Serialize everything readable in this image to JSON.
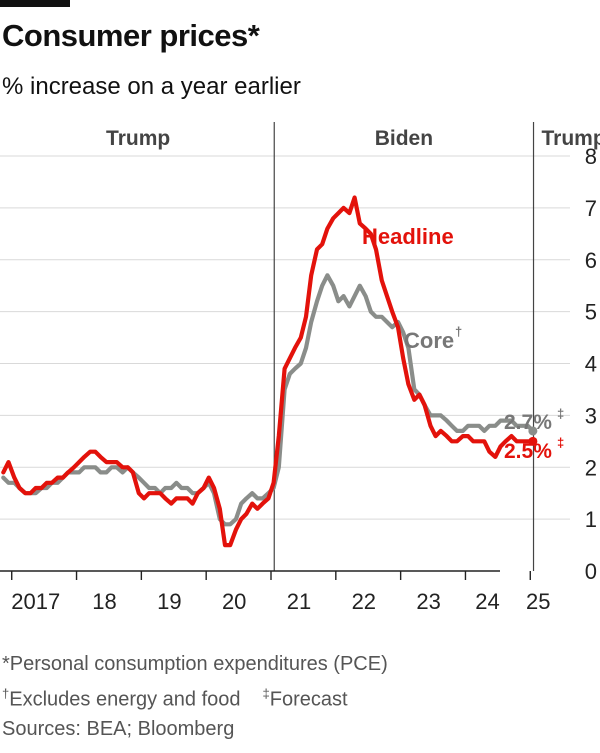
{
  "title": "Consumer prices*",
  "subtitle": "% increase on a year earlier",
  "footnotes": {
    "pce": "*Personal consumption expenditures (PCE)",
    "core_mark": "†",
    "core_note": "Excludes energy and food",
    "forecast_mark": "‡",
    "forecast_note": "Forecast",
    "sources": "Sources: BEA; Bloomberg"
  },
  "colors": {
    "headline": "#e3120b",
    "core": "#8a8d8a",
    "grid": "#d9d9d9",
    "axis": "#222222"
  },
  "chart_data": {
    "type": "line",
    "title": "Consumer prices*",
    "ylabel": "% increase on a year earlier",
    "ylim": [
      0,
      8
    ],
    "xlim": [
      2016.85,
      2025.15
    ],
    "y_ticks": [
      "0",
      "1",
      "2",
      "3",
      "4",
      "5",
      "6",
      "7",
      "8"
    ],
    "x_ticks": [
      {
        "value": 2017,
        "label": "2017"
      },
      {
        "value": 2018,
        "label": "18"
      },
      {
        "value": 2019,
        "label": "19"
      },
      {
        "value": 2020,
        "label": "20"
      },
      {
        "value": 2021,
        "label": "21"
      },
      {
        "value": 2022,
        "label": "22"
      },
      {
        "value": 2023,
        "label": "23"
      },
      {
        "value": 2024,
        "label": "24"
      },
      {
        "value": 2025,
        "label": "25"
      }
    ],
    "periods": [
      {
        "label": "Trump",
        "start": 2016.85,
        "end": 2021.05
      },
      {
        "label": "Biden",
        "start": 2021.05,
        "end": 2025.05
      },
      {
        "label": "Trump",
        "start": 2025.05,
        "end": 2025.15
      }
    ],
    "series": [
      {
        "name": "Headline",
        "label": "Headline",
        "end_label": "2.5%",
        "end_mark": "‡",
        "x": [
          2016.87,
          2016.95,
          2017.04,
          2017.12,
          2017.21,
          2017.29,
          2017.37,
          2017.46,
          2017.54,
          2017.62,
          2017.71,
          2017.79,
          2017.87,
          2017.96,
          2018.04,
          2018.12,
          2018.21,
          2018.29,
          2018.37,
          2018.46,
          2018.54,
          2018.62,
          2018.71,
          2018.79,
          2018.87,
          2018.96,
          2019.04,
          2019.12,
          2019.21,
          2019.29,
          2019.37,
          2019.46,
          2019.54,
          2019.62,
          2019.71,
          2019.79,
          2019.87,
          2019.96,
          2020.04,
          2020.12,
          2020.21,
          2020.29,
          2020.37,
          2020.46,
          2020.54,
          2020.62,
          2020.71,
          2020.79,
          2020.87,
          2020.96,
          2021.04,
          2021.12,
          2021.21,
          2021.29,
          2021.37,
          2021.46,
          2021.54,
          2021.62,
          2021.71,
          2021.79,
          2021.87,
          2021.96,
          2022.04,
          2022.12,
          2022.21,
          2022.29,
          2022.37,
          2022.46,
          2022.54,
          2022.62,
          2022.71,
          2022.79,
          2022.87,
          2022.96,
          2023.04,
          2023.12,
          2023.21,
          2023.29,
          2023.37,
          2023.46,
          2023.54,
          2023.62,
          2023.71,
          2023.79,
          2023.87,
          2023.96,
          2024.04,
          2024.12,
          2024.21,
          2024.29,
          2024.37,
          2024.46,
          2024.54,
          2024.62,
          2024.71,
          2024.79,
          2024.87,
          2024.96,
          2025.04
        ],
        "values": [
          1.9,
          2.1,
          1.8,
          1.6,
          1.5,
          1.5,
          1.6,
          1.6,
          1.7,
          1.7,
          1.8,
          1.8,
          1.9,
          2.0,
          2.1,
          2.2,
          2.3,
          2.3,
          2.2,
          2.1,
          2.1,
          2.1,
          2.0,
          2.0,
          1.9,
          1.5,
          1.4,
          1.5,
          1.5,
          1.5,
          1.4,
          1.3,
          1.4,
          1.4,
          1.4,
          1.3,
          1.5,
          1.6,
          1.8,
          1.6,
          1.2,
          0.5,
          0.5,
          0.8,
          1.0,
          1.1,
          1.3,
          1.2,
          1.3,
          1.4,
          1.7,
          2.6,
          3.9,
          4.1,
          4.3,
          4.5,
          4.9,
          5.7,
          6.2,
          6.3,
          6.6,
          6.8,
          6.9,
          7.0,
          6.9,
          7.2,
          6.7,
          6.6,
          6.5,
          6.2,
          5.6,
          5.3,
          5.0,
          4.7,
          4.1,
          3.6,
          3.3,
          3.4,
          3.2,
          2.8,
          2.6,
          2.7,
          2.6,
          2.5,
          2.5,
          2.6,
          2.6,
          2.5,
          2.5,
          2.5,
          2.3,
          2.2,
          2.4,
          2.5,
          2.6,
          2.5,
          2.5,
          2.5,
          2.5
        ]
      },
      {
        "name": "Core",
        "label": "Core",
        "label_mark": "†",
        "end_label": "2.7%",
        "end_mark": "‡",
        "x": [
          2016.87,
          2016.95,
          2017.04,
          2017.12,
          2017.21,
          2017.29,
          2017.37,
          2017.46,
          2017.54,
          2017.62,
          2017.71,
          2017.79,
          2017.87,
          2017.96,
          2018.04,
          2018.12,
          2018.21,
          2018.29,
          2018.37,
          2018.46,
          2018.54,
          2018.62,
          2018.71,
          2018.79,
          2018.87,
          2018.96,
          2019.04,
          2019.12,
          2019.21,
          2019.29,
          2019.37,
          2019.46,
          2019.54,
          2019.62,
          2019.71,
          2019.79,
          2019.87,
          2019.96,
          2020.04,
          2020.12,
          2020.21,
          2020.29,
          2020.37,
          2020.46,
          2020.54,
          2020.62,
          2020.71,
          2020.79,
          2020.87,
          2020.96,
          2021.04,
          2021.12,
          2021.21,
          2021.29,
          2021.37,
          2021.46,
          2021.54,
          2021.62,
          2021.71,
          2021.79,
          2021.87,
          2021.96,
          2022.04,
          2022.12,
          2022.21,
          2022.29,
          2022.37,
          2022.46,
          2022.54,
          2022.62,
          2022.71,
          2022.79,
          2022.87,
          2022.96,
          2023.04,
          2023.12,
          2023.21,
          2023.29,
          2023.37,
          2023.46,
          2023.54,
          2023.62,
          2023.71,
          2023.79,
          2023.87,
          2023.96,
          2024.04,
          2024.12,
          2024.21,
          2024.29,
          2024.37,
          2024.46,
          2024.54,
          2024.62,
          2024.71,
          2024.79,
          2024.87,
          2024.96,
          2025.04
        ],
        "values": [
          1.8,
          1.7,
          1.7,
          1.6,
          1.5,
          1.5,
          1.5,
          1.6,
          1.6,
          1.7,
          1.7,
          1.8,
          1.9,
          1.9,
          1.9,
          2.0,
          2.0,
          2.0,
          1.9,
          1.9,
          2.0,
          2.0,
          1.9,
          2.0,
          1.9,
          1.8,
          1.7,
          1.6,
          1.6,
          1.5,
          1.6,
          1.6,
          1.7,
          1.6,
          1.6,
          1.5,
          1.5,
          1.6,
          1.7,
          1.5,
          1.0,
          0.9,
          0.9,
          1.0,
          1.3,
          1.4,
          1.5,
          1.4,
          1.4,
          1.5,
          1.6,
          2.0,
          3.5,
          3.8,
          3.9,
          4.0,
          4.3,
          4.8,
          5.2,
          5.5,
          5.7,
          5.5,
          5.2,
          5.3,
          5.1,
          5.3,
          5.5,
          5.3,
          5.0,
          4.9,
          4.9,
          4.8,
          4.7,
          4.8,
          4.6,
          4.3,
          3.5,
          3.4,
          3.2,
          3.0,
          3.0,
          3.0,
          2.9,
          2.8,
          2.7,
          2.7,
          2.8,
          2.8,
          2.8,
          2.7,
          2.8,
          2.8,
          2.9,
          2.9,
          2.9,
          2.8,
          2.8,
          2.8,
          2.7
        ]
      }
    ]
  }
}
